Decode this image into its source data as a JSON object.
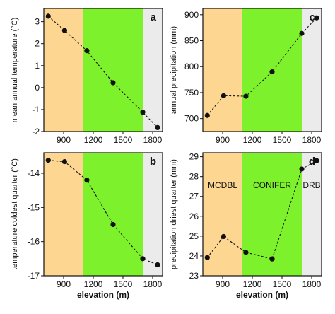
{
  "colors": {
    "zone_mcdbl": "#fdd691",
    "zone_conifer": "#7df12b",
    "zone_drb": "#ebebeb",
    "line": "#111111",
    "marker": "#111111"
  },
  "zone_labels": {
    "mcdbl": "MCDBL",
    "conifer": "CONIFER",
    "drb": "DRB"
  },
  "chart_data": [
    {
      "type": "line",
      "panel": "a",
      "ylabel": "mean annual temperature (°C)",
      "xlabel": "",
      "xlim": [
        700,
        1900
      ],
      "ylim": [
        -2,
        3.6
      ],
      "xticks": [
        "900",
        "1200",
        "1500",
        "1800"
      ],
      "yticks": [
        "3",
        "2",
        "1",
        "0",
        "-1",
        "-2"
      ],
      "zones": [
        {
          "name": "MCDBL",
          "from": 700,
          "to": 1100,
          "color": "#fdd691"
        },
        {
          "name": "CONIFER",
          "from": 1100,
          "to": 1700,
          "color": "#7df12b"
        },
        {
          "name": "DRB",
          "from": 1700,
          "to": 1900,
          "color": "#ebebeb"
        }
      ],
      "line_style": "dashed",
      "x": [
        745,
        910,
        1135,
        1400,
        1700,
        1850
      ],
      "y": [
        3.25,
        2.6,
        1.68,
        0.22,
        -1.12,
        -1.82
      ]
    },
    {
      "type": "line",
      "panel": "c",
      "ylabel": "annual precipitation (mm)",
      "xlabel": "",
      "xlim": [
        700,
        1900
      ],
      "ylim": [
        675,
        912
      ],
      "xticks": [
        "900",
        "1200",
        "1500",
        "1800"
      ],
      "yticks": [
        "900",
        "850",
        "800",
        "750",
        "700"
      ],
      "zones": [
        {
          "name": "MCDBL",
          "from": 700,
          "to": 1100,
          "color": "#fdd691"
        },
        {
          "name": "CONIFER",
          "from": 1100,
          "to": 1700,
          "color": "#7df12b"
        },
        {
          "name": "DRB",
          "from": 1700,
          "to": 1900,
          "color": "#ebebeb"
        }
      ],
      "line_style": "dashed",
      "x": [
        745,
        910,
        1135,
        1400,
        1700,
        1850
      ],
      "y": [
        706,
        744,
        743,
        790,
        864,
        894
      ]
    },
    {
      "type": "line",
      "panel": "b",
      "ylabel": "temperature coldest quarter (°C)",
      "xlabel": "elevation (m)",
      "xlim": [
        700,
        1900
      ],
      "ylim": [
        -17,
        -13.4
      ],
      "xticks": [
        "900",
        "1200",
        "1500",
        "1800"
      ],
      "yticks": [
        "-14",
        "-15",
        "-16",
        "-17"
      ],
      "zones": [
        {
          "name": "MCDBL",
          "from": 700,
          "to": 1100,
          "color": "#fdd691"
        },
        {
          "name": "CONIFER",
          "from": 1100,
          "to": 1700,
          "color": "#7df12b"
        },
        {
          "name": "DRB",
          "from": 1700,
          "to": 1900,
          "color": "#ebebeb"
        }
      ],
      "line_style": "dashed",
      "x": [
        745,
        910,
        1135,
        1400,
        1700,
        1850
      ],
      "y": [
        -13.62,
        -13.66,
        -14.2,
        -15.5,
        -16.5,
        -16.68
      ]
    },
    {
      "type": "line",
      "panel": "d",
      "ylabel": "precipitation driest quarter (mm)",
      "xlabel": "elevation (m)",
      "xlim": [
        700,
        1900
      ],
      "ylim": [
        23,
        29.2
      ],
      "xticks": [
        "900",
        "1200",
        "1500",
        "1800"
      ],
      "yticks": [
        "29",
        "28",
        "27",
        "26",
        "25",
        "24",
        "23"
      ],
      "zones": [
        {
          "name": "MCDBL",
          "from": 700,
          "to": 1100,
          "color": "#fdd691"
        },
        {
          "name": "CONIFER",
          "from": 1100,
          "to": 1700,
          "color": "#7df12b"
        },
        {
          "name": "DRB",
          "from": 1700,
          "to": 1900,
          "color": "#ebebeb"
        }
      ],
      "zone_labels_shown": true,
      "line_style": "dashed",
      "x": [
        745,
        910,
        1135,
        1400,
        1700,
        1850
      ],
      "y": [
        23.92,
        24.98,
        24.18,
        23.85,
        28.38,
        28.8
      ]
    }
  ]
}
